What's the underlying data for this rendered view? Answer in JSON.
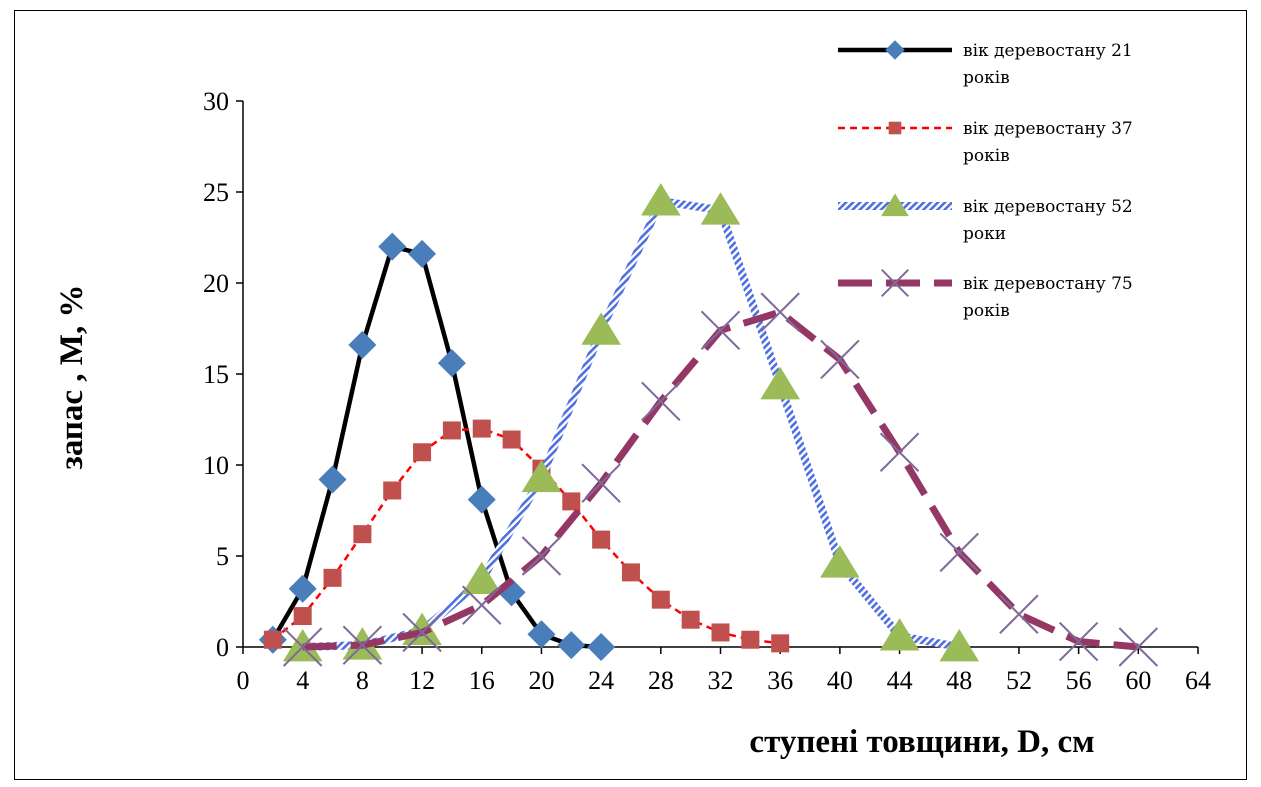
{
  "chart_data": {
    "type": "line",
    "xlabel": "ступені товщини, D, см",
    "ylabel": "запас , М, %",
    "xlim": [
      0,
      64
    ],
    "ylim": [
      0,
      30
    ],
    "xticks": [
      0,
      4,
      8,
      12,
      16,
      20,
      24,
      28,
      32,
      36,
      40,
      44,
      48,
      52,
      56,
      60,
      64
    ],
    "yticks": [
      0,
      5,
      10,
      15,
      20,
      25,
      30
    ],
    "grid": false,
    "legend_position": "top-right",
    "series": [
      {
        "name": "вік деревостану 21 років",
        "legend_lines": [
          "вік деревостану 21",
          "років"
        ],
        "color": "#000000",
        "marker_color": "#4A7EBB",
        "marker": "diamond",
        "line_style": "solid",
        "x": [
          2,
          4,
          6,
          8,
          10,
          12,
          14,
          16,
          18,
          20,
          22,
          24
        ],
        "y": [
          0.4,
          3.2,
          9.2,
          16.6,
          22.0,
          21.6,
          15.6,
          8.1,
          3.0,
          0.7,
          0.1,
          0.0
        ]
      },
      {
        "name": "вік деревостану 37 років",
        "legend_lines": [
          "вік деревостану 37",
          "років"
        ],
        "color": "#FF0000",
        "marker_color": "#C0504D",
        "marker": "square",
        "line_style": "dashed",
        "x": [
          2,
          4,
          6,
          8,
          10,
          12,
          14,
          16,
          18,
          20,
          22,
          24,
          26,
          28,
          30,
          32,
          34,
          36
        ],
        "y": [
          0.4,
          1.7,
          3.8,
          6.2,
          8.6,
          10.7,
          11.9,
          12.0,
          11.4,
          9.8,
          8.0,
          5.9,
          4.1,
          2.6,
          1.5,
          0.8,
          0.4,
          0.2
        ]
      },
      {
        "name": "вік деревостану 52 роки",
        "legend_lines": [
          "вік деревостану 52",
          "роки"
        ],
        "color": "#4F6FE0",
        "marker_color": "#9BBB59",
        "marker": "triangle",
        "line_style": "hatched",
        "x": [
          4,
          8,
          12,
          16,
          20,
          24,
          28,
          32,
          36,
          40,
          44,
          48
        ],
        "y": [
          0.0,
          0.1,
          0.9,
          3.7,
          9.3,
          17.4,
          24.5,
          24.0,
          14.4,
          4.6,
          0.6,
          0.0
        ]
      },
      {
        "name": "вік деревостану 75 років",
        "legend_lines": [
          "вік деревостану 75",
          "років"
        ],
        "color": "#953765",
        "marker_color": "#7E6A9A",
        "marker": "cross",
        "line_style": "long-dash",
        "x": [
          4,
          8,
          12,
          16,
          20,
          24,
          28,
          32,
          36,
          40,
          44,
          48,
          52,
          56,
          60
        ],
        "y": [
          0.0,
          0.1,
          0.8,
          2.3,
          5.0,
          9.0,
          13.5,
          17.4,
          18.4,
          15.8,
          10.7,
          5.2,
          1.8,
          0.3,
          0.0
        ]
      }
    ]
  }
}
